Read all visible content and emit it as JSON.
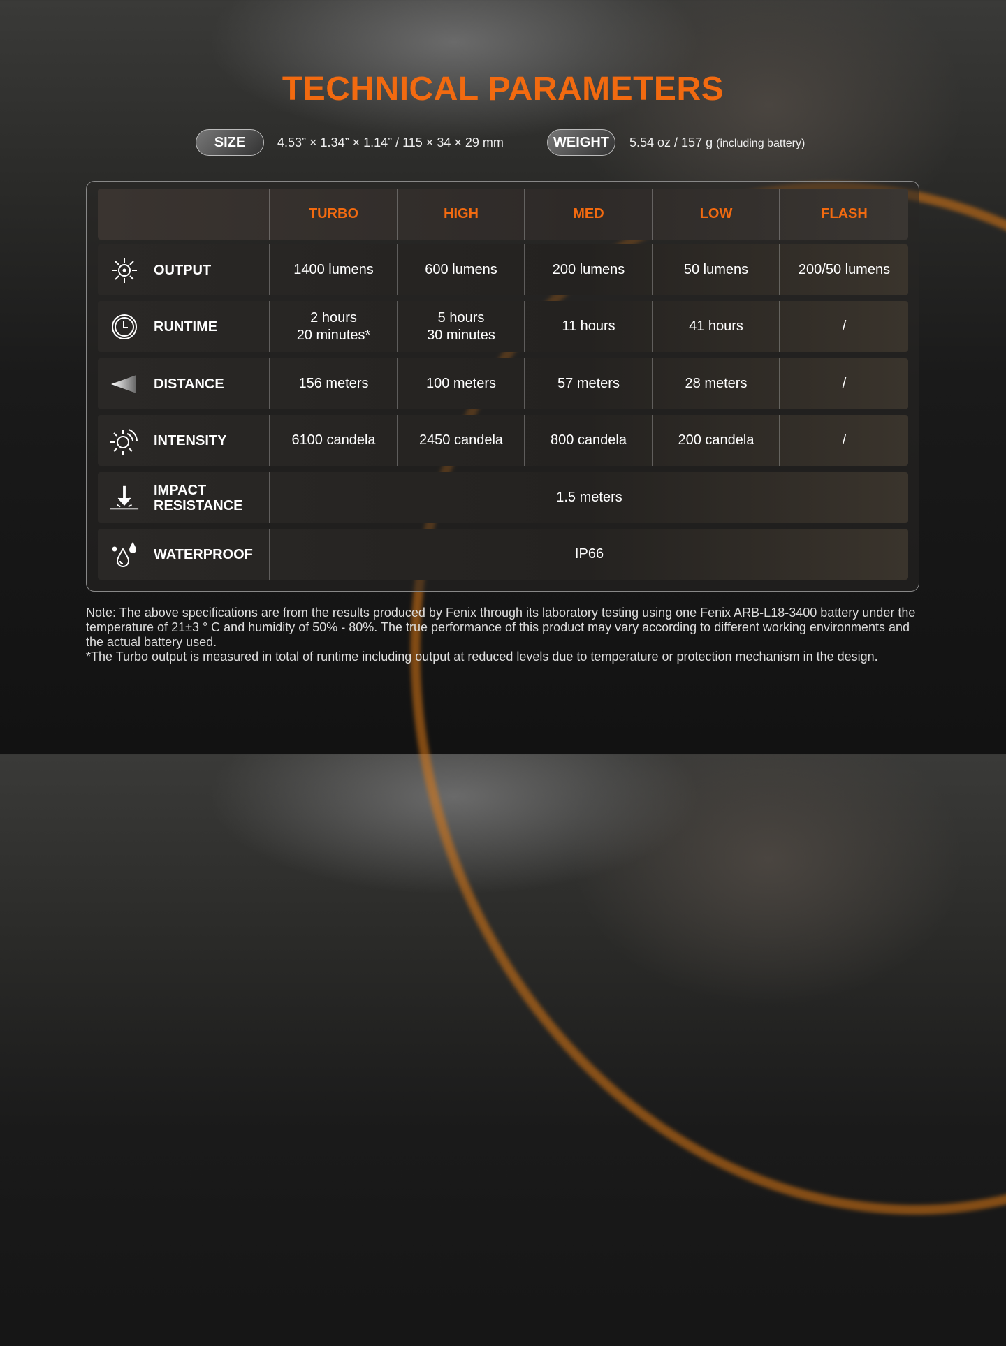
{
  "title": "TECHNICAL PARAMETERS",
  "size": {
    "label": "SIZE",
    "value": "4.53” × 1.34” × 1.14” / 115 × 34 × 29 mm"
  },
  "weight": {
    "label": "WEIGHT",
    "value": "5.54 oz / 157 g",
    "note": "(including battery)"
  },
  "table": {
    "modes": [
      "TURBO",
      "HIGH",
      "MED",
      "LOW",
      "FLASH"
    ],
    "rows": [
      {
        "label": "OUTPUT",
        "icon": "sun-icon",
        "values": [
          "1400 lumens",
          "600 lumens",
          "200 lumens",
          "50 lumens",
          "200/50 lumens"
        ]
      },
      {
        "label": "RUNTIME",
        "icon": "clock-icon",
        "values": [
          "2 hours\n20 minutes*",
          "5 hours\n30 minutes",
          "11 hours",
          "41 hours",
          "/"
        ]
      },
      {
        "label": "DISTANCE",
        "icon": "beam-icon",
        "values": [
          "156 meters",
          "100 meters",
          "57 meters",
          "28 meters",
          "/"
        ]
      },
      {
        "label": "INTENSITY",
        "icon": "intensity-icon",
        "values": [
          "6100 candela",
          "2450 candela",
          "800 candela",
          "200 candela",
          "/"
        ]
      },
      {
        "label": "IMPACT\nRESISTANCE",
        "icon": "impact-icon",
        "value": "1.5 meters"
      },
      {
        "label": "WATERPROOF",
        "icon": "water-drop-icon",
        "value": "IP66"
      }
    ]
  },
  "note": [
    "Note: The above specifications are from the results produced by Fenix through its laboratory testing using one Fenix ARB-L18-3400 battery under the temperature of 21±3 ° C and humidity of 50% - 80%. The true performance of this product may vary according to different working environments and the actual battery used.",
    "*The Turbo output is measured in total of runtime including output at reduced levels due to temperature or protection mechanism in the design."
  ],
  "colors": {
    "accent": "#f26a10"
  }
}
